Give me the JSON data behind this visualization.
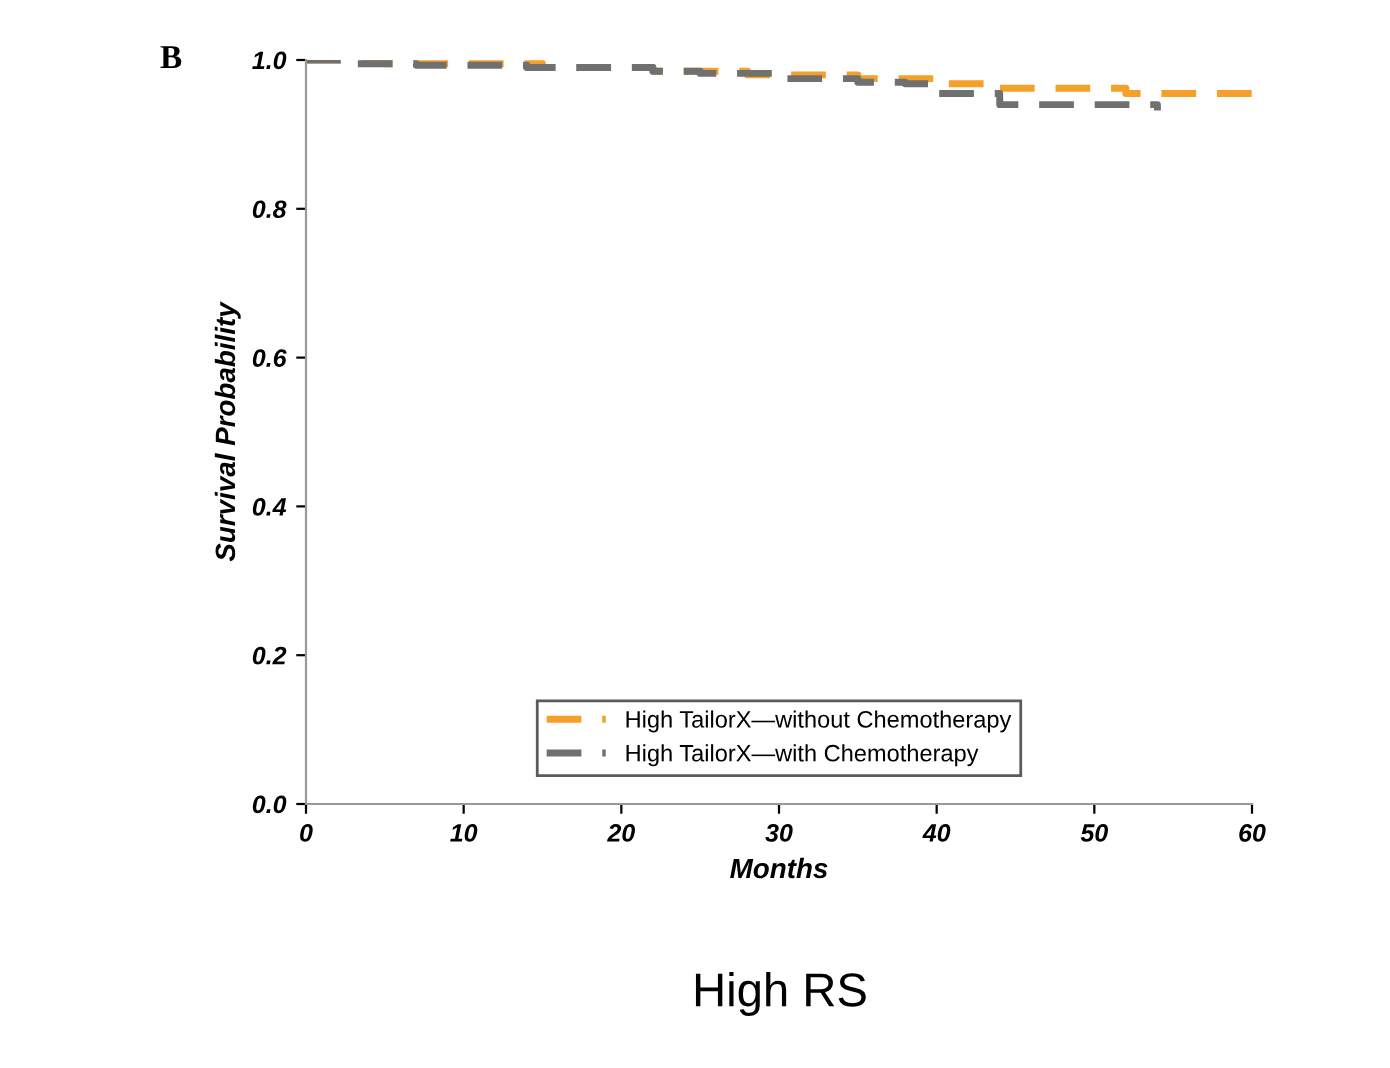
{
  "chart_data": {
    "type": "step",
    "xlabel": "Months",
    "ylabel": "Survival Probability",
    "annotations": [
      "B",
      "High RS"
    ],
    "xlim": [
      0,
      60
    ],
    "xticks": [
      0,
      10,
      20,
      30,
      40,
      50,
      60
    ],
    "ylim": [
      0.0,
      1.0
    ],
    "yticks": [
      {
        "value": 0.0,
        "label": "0.0"
      },
      0.2,
      0.4,
      0.6,
      0.8,
      {
        "value": 1.0,
        "label": "1.0"
      }
    ],
    "grid": false,
    "legend": "bottom",
    "line_style": "dashed",
    "marker": "none",
    "series": [
      {
        "name": "High TailorX—without Chemotherapy",
        "color": "#f5a028",
        "x": [
          0,
          5,
          15,
          22,
          28,
          35,
          40,
          43,
          52,
          60
        ],
        "values": [
          1.0,
          0.995,
          0.99,
          0.985,
          0.98,
          0.975,
          0.968,
          0.962,
          0.955,
          0.945
        ]
      },
      {
        "name": "High TailorX—with Chemotherapy",
        "color": "#707070",
        "x": [
          0,
          3,
          7,
          14,
          22,
          25,
          30,
          35,
          38,
          40,
          44,
          53,
          54
        ],
        "values": [
          1.0,
          0.995,
          0.993,
          0.99,
          0.985,
          0.982,
          0.975,
          0.97,
          0.968,
          0.955,
          0.94,
          0.94,
          0.932
        ]
      }
    ]
  }
}
